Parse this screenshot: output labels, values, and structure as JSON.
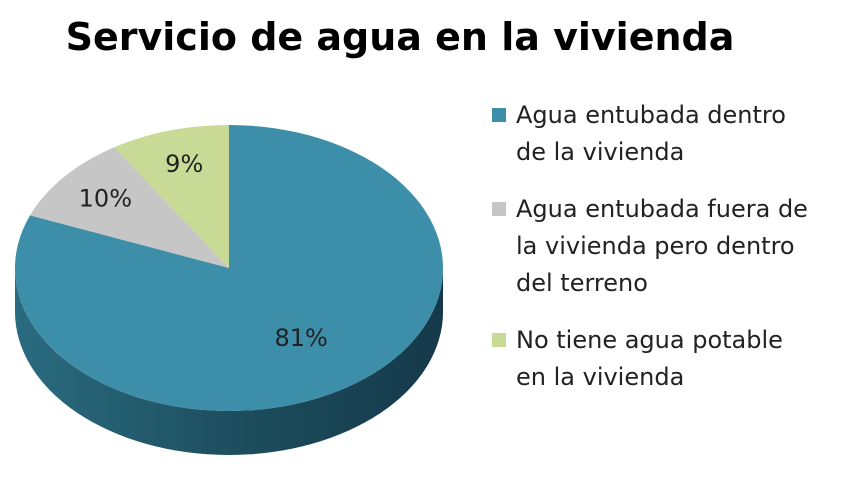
{
  "chart_data": {
    "type": "pie",
    "title": "Servicio de agua en la vivienda",
    "categories": [
      "Agua entubada dentro de la vivienda",
      "Agua entubada fuera de la vivienda pero dentro del terreno",
      "No tiene agua potable en la vivienda"
    ],
    "values": [
      81,
      10,
      9
    ],
    "value_labels": [
      "81%",
      "10%",
      "9%"
    ],
    "colors": [
      "#3d8ea8",
      "#c6c6c6",
      "#c8da96"
    ],
    "legend": "right"
  }
}
